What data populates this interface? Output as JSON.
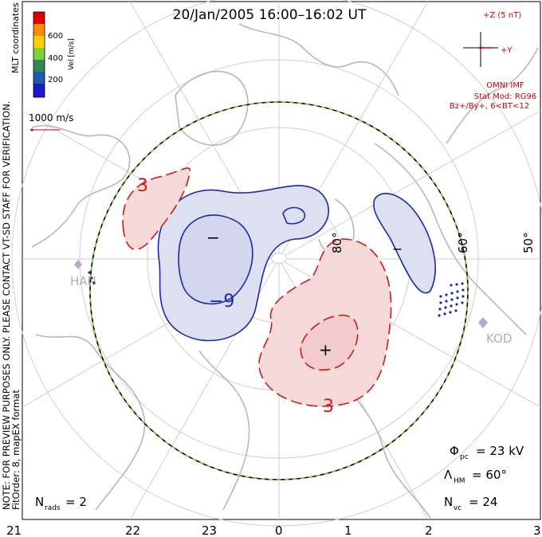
{
  "title": "20/Jan/2005 16:00–16:02 UT",
  "coordinates_label": "MLT coordinates",
  "colorbar": {
    "label": "Vel [m/s]",
    "ticks": [
      "600",
      "400",
      "200"
    ],
    "colors": [
      "#e00000",
      "#ff8c00",
      "#ffd200",
      "#7fd23c",
      "#2e8b57",
      "#1f5aa8",
      "#1a1acc"
    ]
  },
  "scale_vector": {
    "label": "1000 m/s",
    "color": "#cc0000"
  },
  "imf": {
    "z_label": "+Z (5 nT)",
    "y_label": "+Y",
    "source": "OMNI IMF",
    "model": "Stat Mod: RG96",
    "condition": "Bz+/By+, 6<BT<12",
    "color": "#cc0000"
  },
  "side_note": {
    "line1": "NOTE: FOR PREVIEW PURPOSES ONLY. PLEASE CONTACT VT-SD STAFF FOR VERIFICATION.",
    "line2": "FitOrder: 8, mapEX format"
  },
  "latitude_labels": [
    "80°",
    "60°",
    "50°"
  ],
  "stations": [
    "HAN",
    "KOD"
  ],
  "contours": {
    "neg_label": "−9",
    "pos_label": "3",
    "pos_label_2": "3",
    "min_marker": "−",
    "min_marker_2": "−",
    "max_marker": "+",
    "neg_color": "#1a2aa8",
    "pos_color": "#cc1a1a",
    "neg_fill": "#dde0f0",
    "pos_fill": "#f6dada"
  },
  "stats": {
    "phi_pc": {
      "symbol": "Φ",
      "sub": "pc",
      "value": "= 23 kV"
    },
    "lambda_hm": {
      "symbol": "Λ",
      "sub": "HM",
      "value": "= 60°"
    },
    "n_vc": {
      "symbol": "N",
      "sub": "vc",
      "value": "= 24"
    },
    "n_rads": {
      "symbol": "N",
      "sub": "rads",
      "value": "= 2"
    }
  },
  "mlt_axis": [
    "21",
    "22",
    "23",
    "0",
    "1",
    "2",
    "3"
  ],
  "boundary_colors": {
    "dash1": "#000000",
    "dash2": "#7fd23c"
  }
}
